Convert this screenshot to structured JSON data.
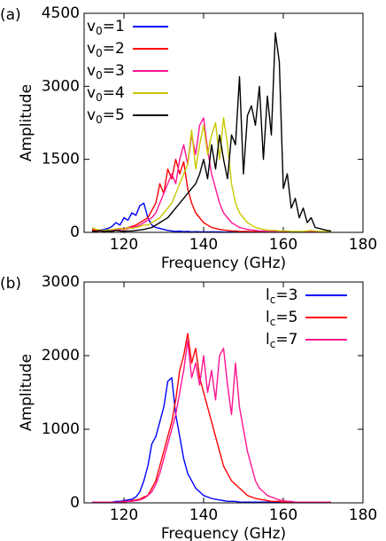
{
  "chart_data": [
    {
      "type": "line",
      "panel_label": "(a)",
      "x_label": "Frequency (GHz)",
      "y_label": "Amplitude",
      "xlim": [
        110,
        180
      ],
      "xticks": [
        120,
        140,
        160,
        180
      ],
      "ylim": [
        0,
        4500
      ],
      "yticks": [
        0,
        1500,
        3000,
        4500
      ],
      "legend": "upper left",
      "x": [
        112,
        113,
        114,
        115,
        116,
        117,
        118,
        119,
        120,
        121,
        122,
        123,
        124,
        125,
        126,
        127,
        128,
        129,
        130,
        131,
        132,
        133,
        134,
        135,
        136,
        137,
        138,
        139,
        140,
        141,
        142,
        143,
        144,
        145,
        146,
        147,
        148,
        149,
        150,
        151,
        152,
        153,
        154,
        155,
        156,
        157,
        158,
        159,
        160,
        161,
        162,
        163,
        164,
        165,
        166,
        167,
        168,
        169,
        170,
        171,
        172
      ],
      "series": [
        {
          "name": "v0=1",
          "color": "#0000ff",
          "values": [
            50,
            30,
            40,
            60,
            80,
            120,
            200,
            150,
            300,
            250,
            400,
            350,
            550,
            600,
            300,
            150,
            100,
            80,
            60,
            40,
            30,
            20,
            25,
            15,
            20,
            10,
            15,
            10,
            10,
            10,
            10,
            10,
            10,
            5,
            5,
            5,
            5,
            5,
            5,
            5,
            5,
            5,
            5,
            5,
            5,
            5,
            5,
            5,
            5,
            5,
            5,
            5,
            5,
            5,
            5,
            5,
            5,
            5,
            5,
            5,
            5
          ]
        },
        {
          "name": "v0=2",
          "color": "#ff0000",
          "values": [
            60,
            40,
            50,
            30,
            40,
            50,
            60,
            80,
            70,
            100,
            120,
            150,
            200,
            250,
            300,
            450,
            600,
            1000,
            800,
            1300,
            1100,
            1500,
            1200,
            1450,
            900,
            600,
            400,
            300,
            200,
            150,
            100,
            80,
            60,
            50,
            40,
            30,
            30,
            20,
            20,
            20,
            15,
            15,
            15,
            10,
            10,
            10,
            10,
            10,
            10,
            10,
            10,
            10,
            10,
            10,
            10,
            10,
            10,
            10,
            10,
            10,
            10
          ]
        },
        {
          "name": "v0=3",
          "color": "#ff1493",
          "values": [
            30,
            20,
            30,
            20,
            30,
            40,
            50,
            60,
            50,
            80,
            100,
            120,
            150,
            200,
            250,
            300,
            400,
            600,
            800,
            1000,
            1200,
            1000,
            1500,
            1800,
            1400,
            2000,
            1600,
            2200,
            2350,
            1700,
            1200,
            900,
            600,
            400,
            300,
            200,
            150,
            100,
            80,
            60,
            50,
            40,
            30,
            30,
            20,
            20,
            20,
            20,
            10,
            10,
            10,
            10,
            10,
            10,
            10,
            10,
            10,
            10,
            10,
            10,
            10
          ]
        },
        {
          "name": "v0=4",
          "color": "#c8c800",
          "values": [
            100,
            60,
            50,
            40,
            50,
            60,
            70,
            80,
            60,
            100,
            80,
            100,
            120,
            150,
            150,
            200,
            250,
            300,
            400,
            500,
            600,
            800,
            1000,
            1200,
            1400,
            2100,
            1300,
            1800,
            2200,
            1600,
            2000,
            2250,
            1500,
            2350,
            1800,
            1000,
            600,
            400,
            300,
            200,
            150,
            100,
            80,
            60,
            50,
            40,
            40,
            30,
            30,
            30,
            20,
            20,
            20,
            20,
            30,
            40,
            30,
            20,
            20,
            20,
            20
          ]
        },
        {
          "name": "v0=5",
          "color": "#000000",
          "values": [
            30,
            20,
            40,
            20,
            30,
            20,
            40,
            30,
            20,
            30,
            30,
            40,
            50,
            60,
            80,
            100,
            150,
            200,
            250,
            300,
            400,
            500,
            600,
            700,
            800,
            900,
            1000,
            1200,
            1500,
            1100,
            1800,
            1300,
            2000,
            1500,
            1100,
            2000,
            1800,
            3200,
            1200,
            2400,
            2600,
            2200,
            3000,
            1500,
            2800,
            2000,
            4100,
            3500,
            900,
            1200,
            500,
            700,
            300,
            500,
            200,
            300,
            100,
            80,
            60,
            40,
            30
          ]
        }
      ]
    },
    {
      "type": "line",
      "panel_label": "(b)",
      "x_label": "Frequency (GHz)",
      "y_label": "Amplitude",
      "xlim": [
        110,
        180
      ],
      "xticks": [
        120,
        140,
        160,
        180
      ],
      "ylim": [
        0,
        3000
      ],
      "yticks": [
        0,
        1000,
        2000,
        3000
      ],
      "legend": "upper right",
      "x": [
        112,
        113,
        114,
        115,
        116,
        117,
        118,
        119,
        120,
        121,
        122,
        123,
        124,
        125,
        126,
        127,
        128,
        129,
        130,
        131,
        132,
        133,
        134,
        135,
        136,
        137,
        138,
        139,
        140,
        141,
        142,
        143,
        144,
        145,
        146,
        147,
        148,
        149,
        150,
        151,
        152,
        153,
        154,
        155,
        156,
        157,
        158,
        159,
        160,
        161,
        162,
        163,
        164,
        165,
        166,
        167,
        168,
        169,
        170,
        171,
        172
      ],
      "series": [
        {
          "name": "lc=3",
          "color": "#0000ff",
          "values": [
            10,
            10,
            10,
            10,
            10,
            10,
            20,
            20,
            30,
            40,
            50,
            80,
            150,
            300,
            500,
            800,
            900,
            1100,
            1300,
            1650,
            1700,
            1200,
            900,
            600,
            400,
            300,
            200,
            150,
            100,
            80,
            60,
            50,
            40,
            30,
            20,
            20,
            20,
            10,
            10,
            10,
            10,
            10,
            10,
            10,
            10,
            10,
            10,
            10,
            10,
            10,
            10,
            10,
            10,
            10,
            10,
            10,
            10,
            10,
            10,
            10,
            10
          ]
        },
        {
          "name": "lc=5",
          "color": "#ff0000",
          "values": [
            10,
            10,
            10,
            10,
            10,
            10,
            10,
            10,
            20,
            20,
            30,
            40,
            50,
            80,
            100,
            200,
            300,
            500,
            700,
            900,
            1100,
            1400,
            1800,
            2000,
            2300,
            1900,
            2100,
            1700,
            1500,
            1300,
            1100,
            900,
            700,
            500,
            400,
            300,
            250,
            200,
            150,
            100,
            80,
            60,
            50,
            40,
            30,
            20,
            20,
            20,
            10,
            10,
            10,
            10,
            10,
            10,
            10,
            10,
            10,
            10,
            10,
            10,
            10
          ]
        },
        {
          "name": "lc=7",
          "color": "#ff1493",
          "values": [
            10,
            10,
            10,
            10,
            10,
            10,
            10,
            10,
            10,
            20,
            20,
            30,
            40,
            60,
            100,
            150,
            250,
            400,
            600,
            800,
            1000,
            1200,
            1500,
            1800,
            2200,
            1700,
            1900,
            1600,
            2000,
            1500,
            1800,
            1400,
            2000,
            2100,
            1600,
            1200,
            1900,
            1300,
            1000,
            700,
            500,
            300,
            200,
            150,
            100,
            80,
            60,
            40,
            30,
            20,
            20,
            10,
            10,
            10,
            10,
            10,
            10,
            10,
            10,
            10,
            10
          ]
        }
      ]
    }
  ]
}
